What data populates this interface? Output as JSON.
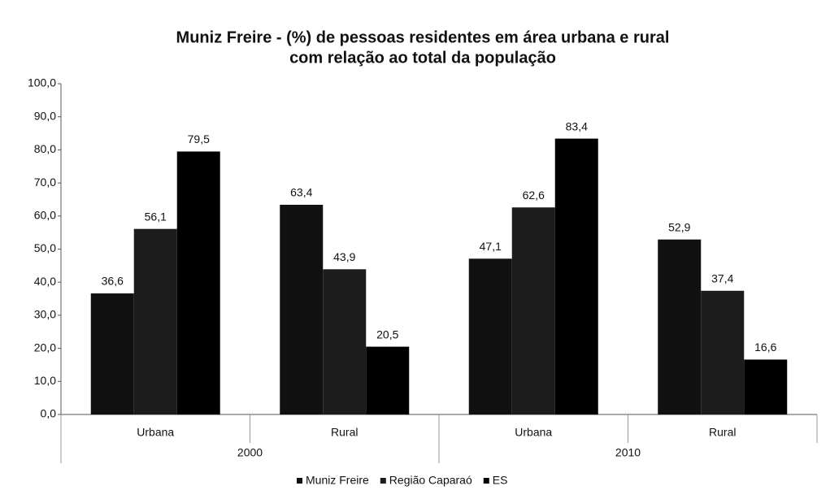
{
  "chart_data": {
    "type": "bar",
    "title": [
      "Muniz Freire - (%) de pessoas residentes em área urbana e rural",
      "com relação ao total da população"
    ],
    "categories": [
      "Urbana",
      "Rural",
      "Urbana",
      "Rural"
    ],
    "groups": [
      "2000",
      "2010"
    ],
    "series": [
      {
        "name": "Muniz Freire",
        "color": "#111111",
        "values": [
          36.6,
          63.4,
          47.1,
          52.9
        ],
        "value_labels": [
          "36,6",
          "63,4",
          "47,1",
          "52,9"
        ]
      },
      {
        "name": "Região Caparaó",
        "color": "#1c1c1c",
        "values": [
          56.1,
          43.9,
          62.6,
          37.4
        ],
        "value_labels": [
          "56,1",
          "43,9",
          "62,6",
          "37,4"
        ]
      },
      {
        "name": "ES",
        "color": "#000000",
        "values": [
          79.5,
          20.5,
          83.4,
          16.6
        ],
        "value_labels": [
          "79,5",
          "20,5",
          "83,4",
          "16,6"
        ]
      }
    ],
    "ylim": [
      0,
      100
    ],
    "yticks": [
      {
        "value": 0,
        "label": "0,0"
      },
      {
        "value": 10,
        "label": "10,0"
      },
      {
        "value": 20,
        "label": "20,0"
      },
      {
        "value": 30,
        "label": "30,0"
      },
      {
        "value": 40,
        "label": "40,0"
      },
      {
        "value": 50,
        "label": "50,0"
      },
      {
        "value": 60,
        "label": "60,0"
      },
      {
        "value": 70,
        "label": "70,0"
      },
      {
        "value": 80,
        "label": "80,0"
      },
      {
        "value": 90,
        "label": "90,0"
      },
      {
        "value": 100,
        "label": "100,0"
      }
    ],
    "legend": "bottom"
  }
}
